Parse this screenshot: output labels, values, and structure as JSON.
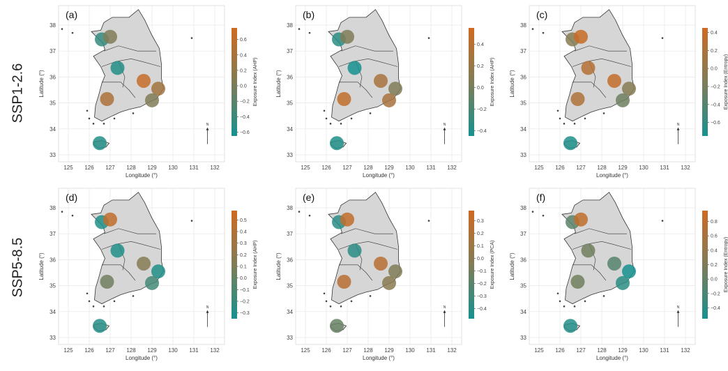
{
  "row_labels": [
    "SSP1-2.6",
    "SSP5-8.5"
  ],
  "axes": {
    "xlabel": "Longitude (°)",
    "ylabel": "Latitude (°)",
    "x_ticks": [
      "125",
      "126",
      "127",
      "128",
      "129",
      "130",
      "131",
      "132"
    ],
    "y_ticks": [
      "38",
      "37",
      "36",
      "35",
      "34",
      "33"
    ],
    "north_label": "N"
  },
  "colors": {
    "low": "#16918f",
    "mid": "#7f7c57",
    "high": "#cf6a22",
    "land": "#d6d6d6",
    "border": "#333333",
    "grid": "#e6e6e6"
  },
  "panels": [
    {
      "label": "(a)",
      "colorbar_title": "Exposure Index (AHP)",
      "colorbar_ticks": [
        "0.6",
        "0.4",
        "0.2",
        "0.0",
        "−0.2",
        "−0.4",
        "−0.6"
      ],
      "range": [
        -0.65,
        0.75
      ],
      "values": [
        -0.45,
        0.05,
        -0.55,
        0.65,
        0.35,
        0.05,
        0.45,
        -0.55
      ]
    },
    {
      "label": "(b)",
      "colorbar_title": "Exposure Index (AHP)",
      "colorbar_ticks": [
        "0.4",
        "0.2",
        "0.0",
        "−0.2",
        "−0.4"
      ],
      "range": [
        -0.45,
        0.55
      ],
      "values": [
        -0.35,
        0.05,
        -0.45,
        0.3,
        0.05,
        0.3,
        0.45,
        -0.4
      ]
    },
    {
      "label": "(c)",
      "colorbar_title": "Exposure Index (Entropy)",
      "colorbar_ticks": [
        "0.4",
        "0.2",
        "0.0",
        "−0.2",
        "−0.4",
        "−0.6"
      ],
      "range": [
        -0.75,
        0.45
      ],
      "values": [
        -0.1,
        0.4,
        0.25,
        0.35,
        -0.1,
        -0.25,
        0.2,
        -0.7
      ]
    },
    {
      "label": "(d)",
      "colorbar_title": "Exposure Index (AHP)",
      "colorbar_ticks": [
        "0.5",
        "0.4",
        "0.3",
        "0.2",
        "0.1",
        "0.0",
        "−0.1",
        "−0.2",
        "−0.3"
      ],
      "range": [
        -0.35,
        0.58
      ],
      "values": [
        -0.3,
        0.5,
        -0.3,
        0.15,
        -0.3,
        -0.15,
        0.05,
        -0.28
      ]
    },
    {
      "label": "(e)",
      "colorbar_title": "Exposure Index (PCA)",
      "colorbar_ticks": [
        "0.3",
        "0.2",
        "0.1",
        "0.0",
        "−0.1",
        "−0.2",
        "−0.3",
        "−0.4"
      ],
      "range": [
        -0.48,
        0.38
      ],
      "values": [
        -0.4,
        0.3,
        -0.4,
        0.25,
        -0.05,
        0.0,
        0.25,
        -0.15
      ]
    },
    {
      "label": "(f)",
      "colorbar_title": "Exposure Index (Entropy)",
      "colorbar_ticks": [
        "0.8",
        "0.6",
        "0.4",
        "0.2",
        "0.0",
        "−0.2",
        "−0.4"
      ],
      "range": [
        -0.55,
        0.95
      ],
      "values": [
        -0.05,
        0.8,
        0.1,
        -0.1,
        -0.55,
        -0.4,
        0.1,
        -0.45
      ]
    }
  ]
}
